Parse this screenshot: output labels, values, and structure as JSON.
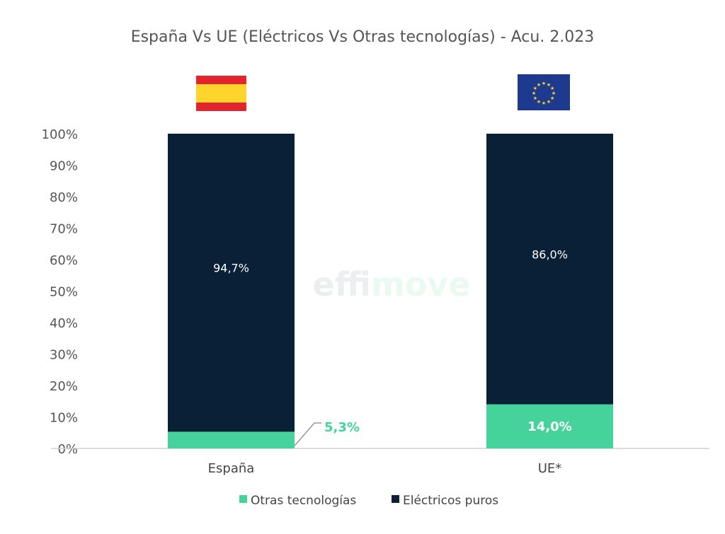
{
  "chart_data": {
    "type": "bar",
    "stacked": true,
    "title": "España Vs UE (Eléctricos Vs Otras tecnologías) - Acu. 2.023",
    "categories": [
      "España",
      "UE*"
    ],
    "series": [
      {
        "name": "Otras tecnologías",
        "values": [
          5.3,
          14.0
        ],
        "labels": [
          "5,3%",
          "14,0%"
        ],
        "color": "#45d39b"
      },
      {
        "name": "Eléctricos puros",
        "values": [
          94.7,
          86.0
        ],
        "labels": [
          "94,7%",
          "86,0%"
        ],
        "color": "#0a2036"
      }
    ],
    "ylim": [
      0,
      100
    ],
    "yticks": [
      "0%",
      "10%",
      "20%",
      "30%",
      "40%",
      "50%",
      "60%",
      "70%",
      "80%",
      "90%",
      "100%"
    ],
    "grid": false,
    "legend": "bottom",
    "flags": [
      "spain-flag",
      "eu-flag"
    ],
    "watermark": "effimove"
  }
}
